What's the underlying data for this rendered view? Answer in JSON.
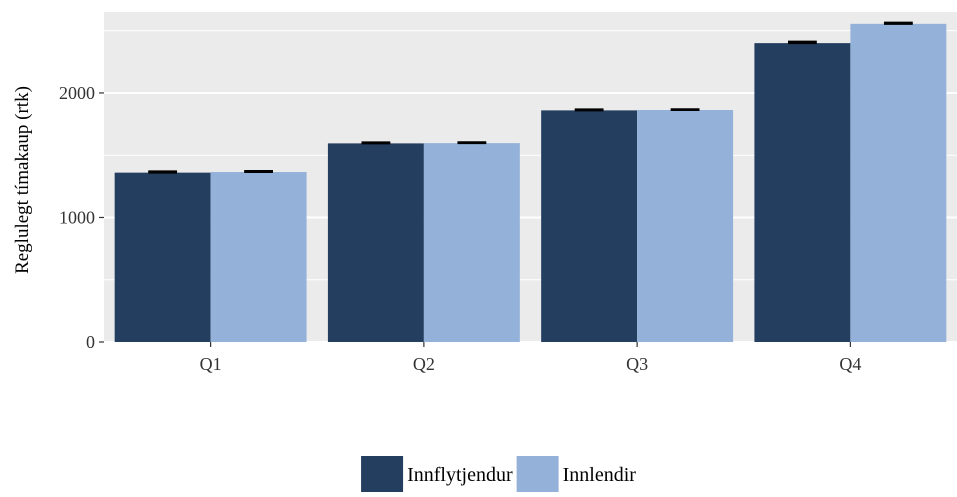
{
  "chart_data": {
    "type": "bar",
    "categories": [
      "Q1",
      "Q2",
      "Q3",
      "Q4"
    ],
    "series": [
      {
        "name": "Innflytjendur",
        "values": [
          1360,
          1595,
          1860,
          2400
        ],
        "error_high": [
          1370,
          1603,
          1868,
          2412
        ],
        "color": "#243e60"
      },
      {
        "name": "Innlendir",
        "values": [
          1365,
          1597,
          1863,
          2555
        ],
        "error_high": [
          1373,
          1604,
          1869,
          2565
        ],
        "color": "#94b2d9"
      }
    ],
    "xlabel": "",
    "ylabel": "Reglulegt tímakaup (rtk)",
    "yticks": [
      0,
      1000,
      2000
    ],
    "ylim": [
      0,
      2650
    ],
    "grid": true,
    "panel_background": "#ebebeb",
    "legend_position": "bottom"
  }
}
